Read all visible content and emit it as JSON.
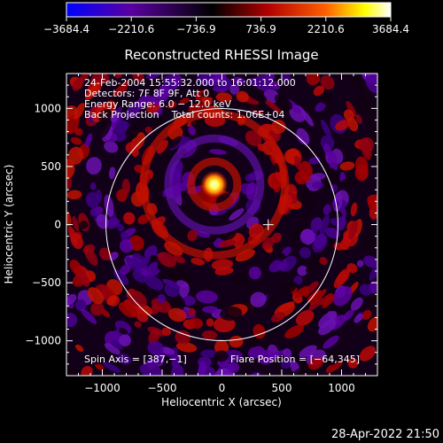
{
  "chart_data": {
    "type": "heatmap",
    "title": "Reconstructed RHESSI Image",
    "xlabel": "Heliocentric X (arcsec)",
    "ylabel": "Heliocentric Y (arcsec)",
    "xlim": [
      -1300,
      1300
    ],
    "ylim": [
      -1300,
      1300
    ],
    "xticks": [
      -1000,
      -500,
      0,
      500,
      1000
    ],
    "yticks": [
      -1000,
      -500,
      0,
      500,
      1000
    ],
    "xtick_labels": [
      "−1000",
      "−500",
      "0",
      "500",
      "1000"
    ],
    "ytick_labels": [
      "−1000",
      "−500",
      "0",
      "500",
      "1000"
    ],
    "colorbar": {
      "range": [
        -3684.4,
        3684.4
      ],
      "ticks": [
        -3684.4,
        -2210.6,
        -736.9,
        736.9,
        2210.6,
        3684.4
      ],
      "tick_labels": [
        "−3684.4",
        "−2210.6",
        "−736.9",
        "736.9",
        "2210.6",
        "3684.4"
      ],
      "colors": [
        "#0000ff",
        "#5a00a0",
        "#000000",
        "#b00000",
        "#ff6000",
        "#ffff00",
        "#ffffff"
      ]
    },
    "solar_limb_radius_arcsec": 970,
    "sun_center_marker": [
      0,
      0
    ],
    "flare_peak": [
      -64,
      345
    ],
    "spin_axis_marker": [
      387,
      -1
    ],
    "info_lines": [
      "24-Feb-2004 15:55:32.000 to 16:01:12.000",
      "Detectors: 7F 8F 9F, Att 0",
      "Energy Range: 6.0 − 12.0 keV",
      "Back Projection    Total counts: 1.06E+04"
    ],
    "spin_axis_label": "Spin Axis = [387,−1]",
    "flare_position_label": "Flare Position = [−64,345]"
  },
  "footer_timestamp": "28-Apr-2022 21:50"
}
